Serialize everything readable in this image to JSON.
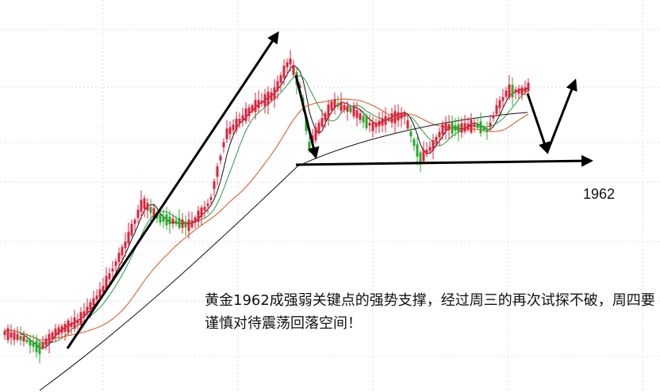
{
  "chart_data": {
    "type": "candlestick",
    "support_level": 1962,
    "support_label": "1962",
    "annotation": "黄金1962成强弱关键点的强势支撑，经过周三的再次试探不破，周四要谨慎对待震荡回落空间！",
    "grid": true,
    "colors": {
      "up": "#e0203a",
      "down": "#2aa82a",
      "ma_short": "#111111",
      "ma_mid": "#1e9e3e",
      "ma_long": "#e0602a",
      "ma_very_long": "#111111",
      "trend_arrow": "#000000",
      "grid": "#dedede"
    }
  }
}
